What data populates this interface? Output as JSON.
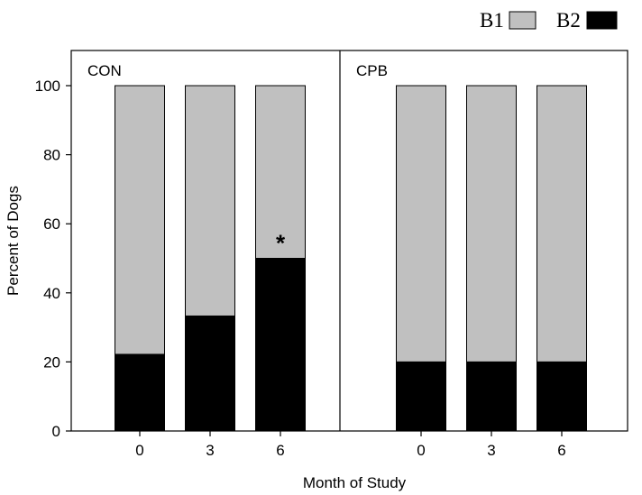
{
  "chart_data": {
    "type": "bar",
    "stacked": true,
    "ylabel": "Percent of Dogs",
    "xlabel": "Month of Study",
    "ylim": [
      0,
      110
    ],
    "yticks": [
      0,
      20,
      40,
      60,
      80,
      100
    ],
    "legend": {
      "placement": "top-right",
      "entries": [
        {
          "name": "B1",
          "color": "#c0c0c0"
        },
        {
          "name": "B2",
          "color": "#000000"
        }
      ]
    },
    "panels": [
      {
        "label": "CON",
        "categories": [
          "0",
          "3",
          "6"
        ],
        "series": [
          {
            "name": "B2",
            "values": [
              22.2,
              33.3,
              50.0
            ]
          },
          {
            "name": "B1",
            "values": [
              77.8,
              66.7,
              50.0
            ]
          }
        ],
        "annotations": [
          {
            "category": "6",
            "text": "*"
          }
        ]
      },
      {
        "label": "CPB",
        "categories": [
          "0",
          "3",
          "6"
        ],
        "series": [
          {
            "name": "B2",
            "values": [
              20.0,
              20.0,
              20.0
            ]
          },
          {
            "name": "B1",
            "values": [
              80.0,
              80.0,
              80.0
            ]
          }
        ],
        "annotations": []
      }
    ]
  }
}
